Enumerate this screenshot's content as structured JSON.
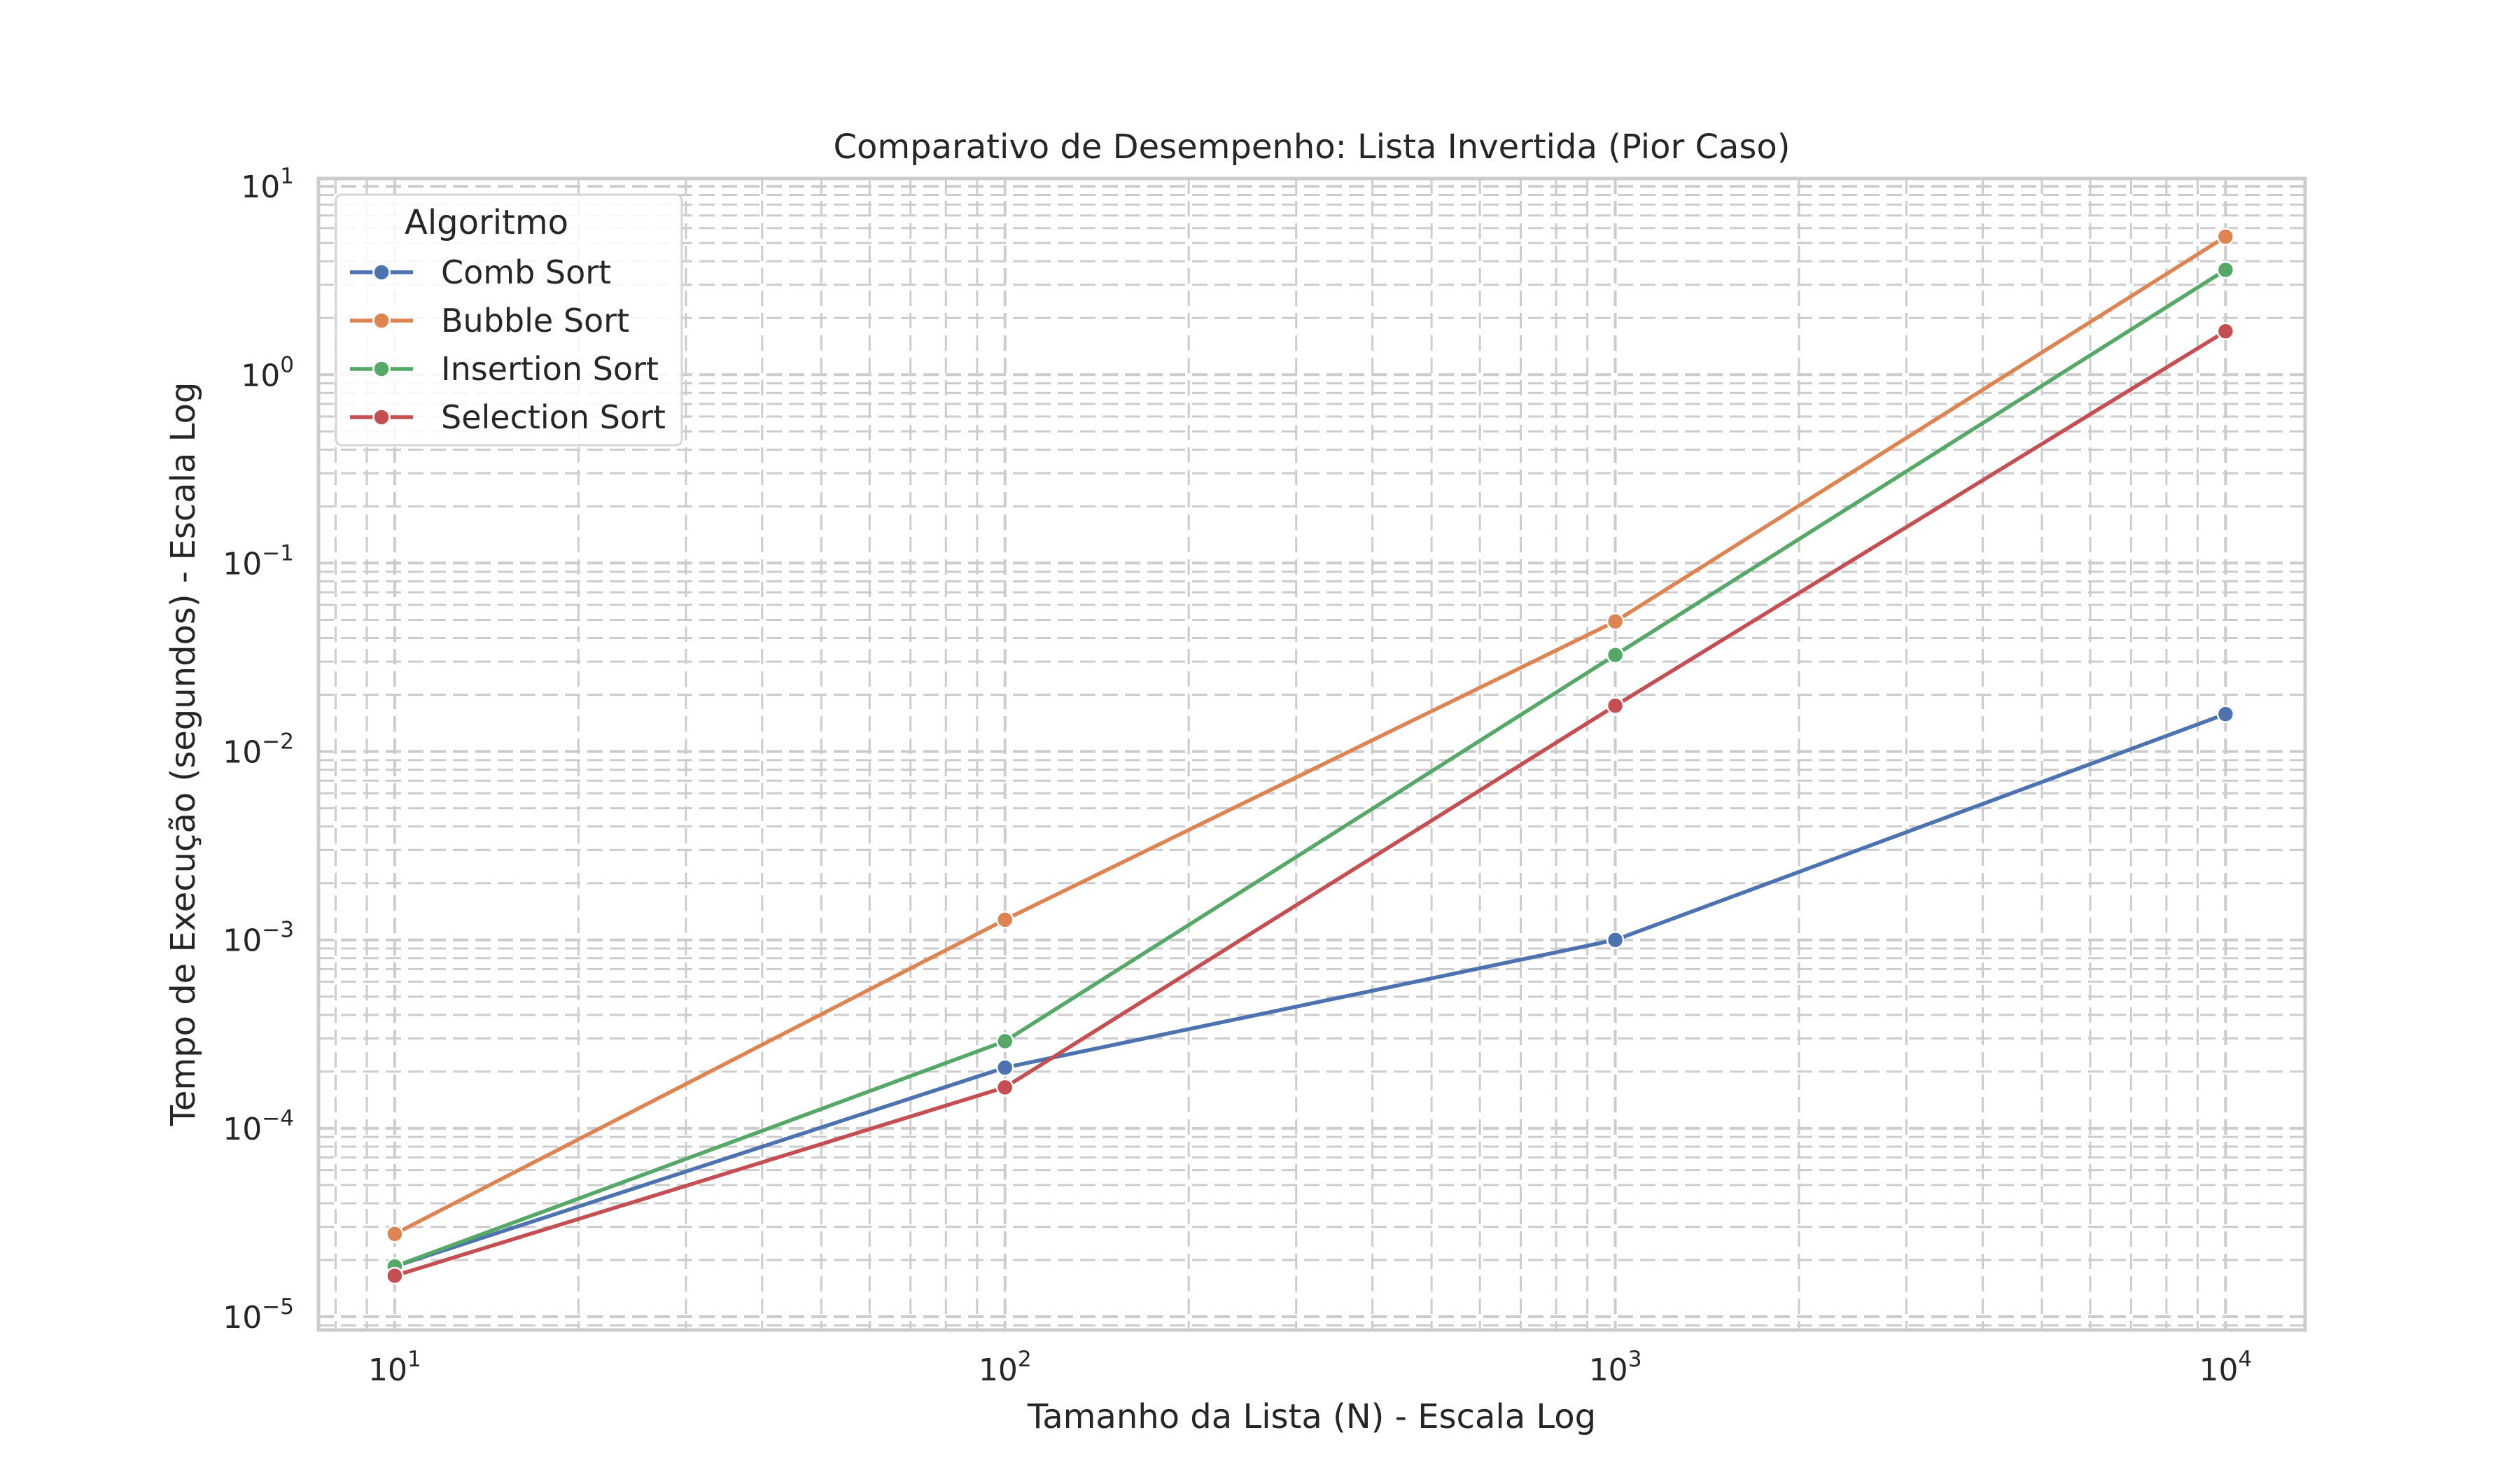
{
  "chart_data": {
    "type": "line",
    "title": "Comparativo de Desempenho: Lista Invertida (Pior Caso)",
    "xlabel": "Tamanho da Lista (N) - Escala Log",
    "ylabel": "Tempo de Execução (segundos) - Escala Log",
    "xscale": "log",
    "yscale": "log",
    "xlim": [
      7.5,
      13500
    ],
    "ylim": [
      8.5e-06,
      11
    ],
    "x_ticks": [
      {
        "value": 10,
        "base": "10",
        "exp": "1"
      },
      {
        "value": 100,
        "base": "10",
        "exp": "2"
      },
      {
        "value": 1000,
        "base": "10",
        "exp": "3"
      },
      {
        "value": 10000,
        "base": "10",
        "exp": "4"
      }
    ],
    "y_ticks": [
      {
        "value": 1e-05,
        "base": "10",
        "exp": "−5"
      },
      {
        "value": 0.0001,
        "base": "10",
        "exp": "−4"
      },
      {
        "value": 0.001,
        "base": "10",
        "exp": "−3"
      },
      {
        "value": 0.01,
        "base": "10",
        "exp": "−2"
      },
      {
        "value": 0.1,
        "base": "10",
        "exp": "−1"
      },
      {
        "value": 1,
        "base": "10",
        "exp": "0"
      },
      {
        "value": 10,
        "base": "10",
        "exp": "1"
      }
    ],
    "grid": true,
    "grid_style": "dashed, major and minor",
    "legend": {
      "title": "Algoritmo",
      "position": "top-left"
    },
    "x": [
      10,
      100,
      1000,
      10000
    ],
    "series": [
      {
        "name": "Comb Sort",
        "color": "#4c72b0",
        "values": [
          1.85e-05,
          0.00021,
          0.001,
          0.0158
        ]
      },
      {
        "name": "Bubble Sort",
        "color": "#dd8452",
        "values": [
          2.75e-05,
          0.00128,
          0.049,
          5.4
        ]
      },
      {
        "name": "Insertion Sort",
        "color": "#55a868",
        "values": [
          1.85e-05,
          0.00029,
          0.0325,
          3.6
        ]
      },
      {
        "name": "Selection Sort",
        "color": "#c44e52",
        "values": [
          1.65e-05,
          0.000165,
          0.0175,
          1.7
        ]
      }
    ]
  }
}
